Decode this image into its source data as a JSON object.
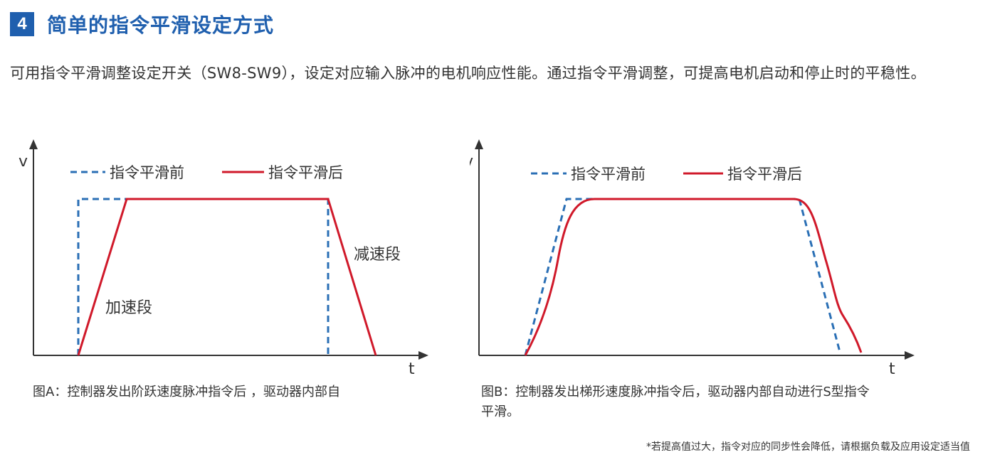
{
  "header": {
    "number": "4",
    "title": "简单的指令平滑设定方式"
  },
  "intro": {
    "text": "可用指令平滑调整设定开关（SW8-SW9），设定对应输入脉冲的电机响应性能。通过指令平滑调整，可提高电机启动和停止时的平稳性。"
  },
  "colors": {
    "accent": "#1f5fae",
    "before_line": "#2a6fb5",
    "after_line": "#d0192a",
    "axis": "#333333"
  },
  "diagram_a": {
    "y_axis_label": "v",
    "x_axis_label": "t",
    "legend_before": "指令平滑前",
    "legend_after": "指令平滑后",
    "accel_label": "加速段",
    "decel_label": "减速段",
    "caption": "图A：控制器发出阶跃速度脉冲指令后 ，驱动器内部自"
  },
  "diagram_b": {
    "y_axis_label": "v",
    "x_axis_label": "t",
    "legend_before": "指令平滑前",
    "legend_after": "指令平滑后",
    "caption": "图B：控制器发出梯形速度脉冲指令后，驱动器内部自动进行S型指令平滑。"
  },
  "footnote": {
    "text": "*若提高值过大，指令对应的同步性会降低，请根据负载及应用设定适当值"
  }
}
